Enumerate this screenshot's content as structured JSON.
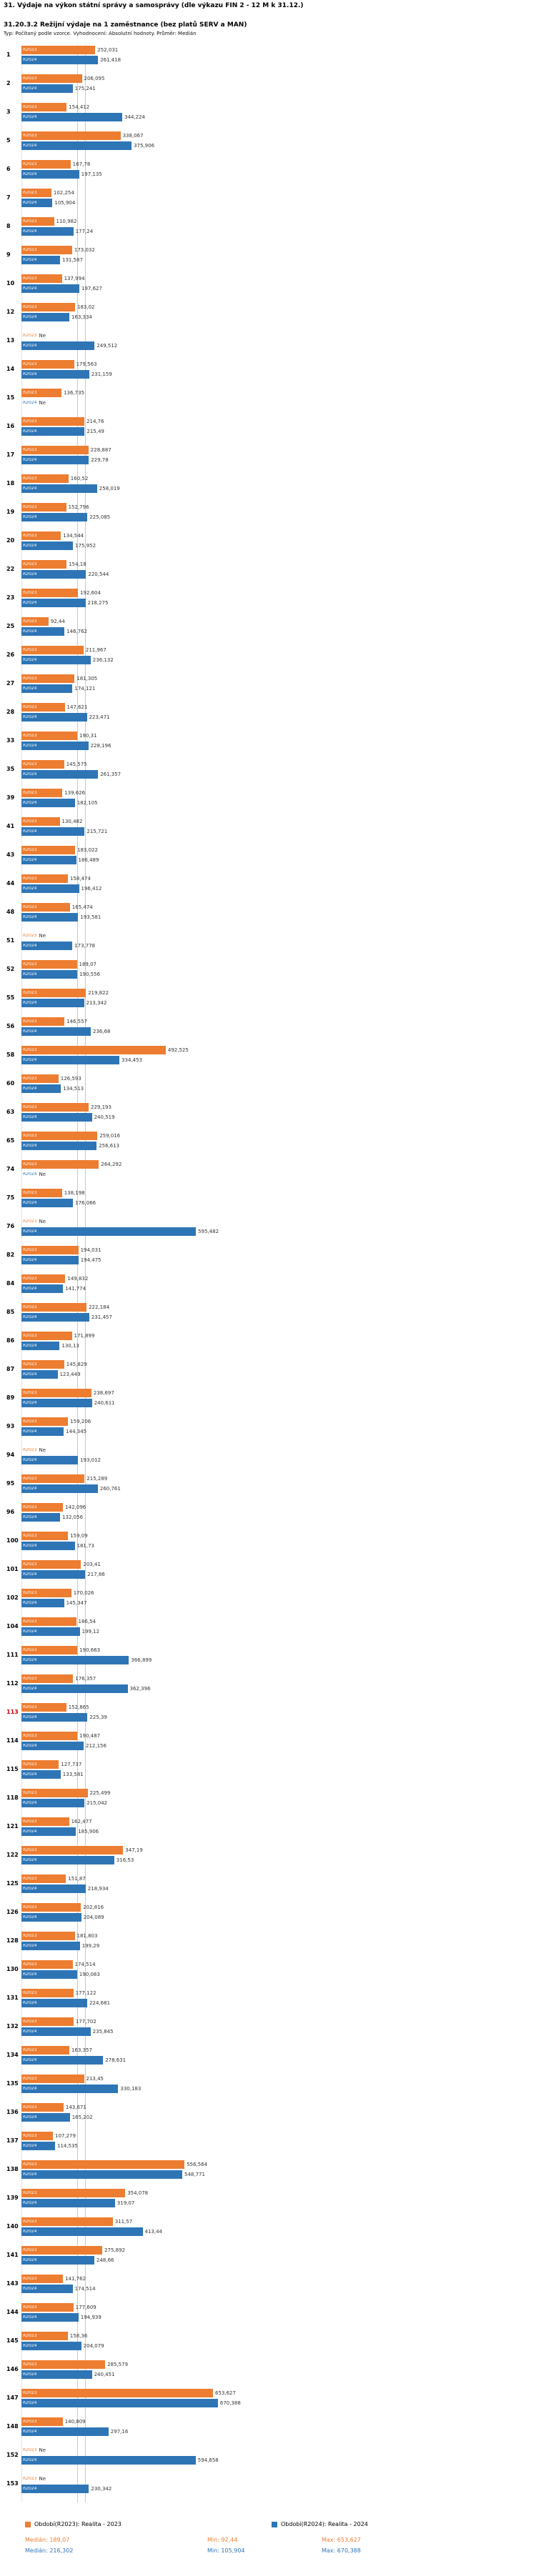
{
  "header": {
    "title": "31. Výdaje na výkon státní správy a samosprávy (dle výkazu FIN 2 - 12 M k 31.12.)",
    "subtitle": "31.20.3.2 Režijní výdaje na 1 zaměstnance (bez platů SERV a MAN)",
    "meta": "Typ: Počítaný podle vzorce. Vyhodnocení: Absolutní hodnoty. Průměr: Medián"
  },
  "colors": {
    "r2023": "#ed7d31",
    "r2024": "#2e75b6",
    "highlight": "#d40000",
    "median_line": "#c8c8c8"
  },
  "legend": {
    "items": [
      {
        "label": "Období(R2023): Realita - 2023",
        "color": "#ed7d31"
      },
      {
        "label": "Období(R2024): Realita - 2024",
        "color": "#2e75b6"
      }
    ]
  },
  "stats": {
    "r2023": {
      "median_text": "Medián: 189,07",
      "min_text": "Min: 92,44",
      "max_text": "Max: 653,627"
    },
    "r2024": {
      "median_text": "Medián: 216,302",
      "min_text": "Min: 105,904",
      "max_text": "Max: 670,388"
    }
  },
  "chart_data": {
    "type": "bar",
    "orientation": "horizontal",
    "series": [
      "R2023",
      "R2024"
    ],
    "no_value_text": "Ne",
    "xlim": [
      0,
      700
    ],
    "grid": false,
    "legend_position": "bottom",
    "median_lines": [
      189.07,
      216.302
    ],
    "highlighted_rows": [
      "113"
    ],
    "rows": [
      {
        "label": "1",
        "r2023": "252,031",
        "r2024": "261,418"
      },
      {
        "label": "2",
        "r2023": "206,095",
        "r2024": "175,241"
      },
      {
        "label": "3",
        "r2023": "154,412",
        "r2024": "344,224"
      },
      {
        "label": "5",
        "r2023": "338,067",
        "r2024": "375,906"
      },
      {
        "label": "6",
        "r2023": "167,78",
        "r2024": "197,135"
      },
      {
        "label": "7",
        "r2023": "102,254",
        "r2024": "105,904"
      },
      {
        "label": "8",
        "r2023": "110,982",
        "r2024": "177,24"
      },
      {
        "label": "9",
        "r2023": "173,032",
        "r2024": "131,587"
      },
      {
        "label": "10",
        "r2023": "137,994",
        "r2024": "197,627"
      },
      {
        "label": "12",
        "r2023": "183,02",
        "r2024": "163,334"
      },
      {
        "label": "13",
        "r2023": "Ne",
        "r2024": "249,512"
      },
      {
        "label": "14",
        "r2023": "179,563",
        "r2024": "231,159"
      },
      {
        "label": "15",
        "r2023": "136,735",
        "r2024": "Ne"
      },
      {
        "label": "16",
        "r2023": "214,76",
        "r2024": "215,49"
      },
      {
        "label": "17",
        "r2023": "228,887",
        "r2024": "229,78"
      },
      {
        "label": "18",
        "r2023": "160,52",
        "r2024": "258,019"
      },
      {
        "label": "19",
        "r2023": "152,796",
        "r2024": "225,085"
      },
      {
        "label": "20",
        "r2023": "134,544",
        "r2024": "175,952"
      },
      {
        "label": "22",
        "r2023": "154,18",
        "r2024": "220,544"
      },
      {
        "label": "23",
        "r2023": "192,604",
        "r2024": "218,275"
      },
      {
        "label": "25",
        "r2023": "92,44",
        "r2024": "146,762"
      },
      {
        "label": "26",
        "r2023": "211,967",
        "r2024": "236,132"
      },
      {
        "label": "27",
        "r2023": "181,305",
        "r2024": "174,121"
      },
      {
        "label": "28",
        "r2023": "147,621",
        "r2024": "223,471"
      },
      {
        "label": "33",
        "r2023": "190,31",
        "r2024": "228,196"
      },
      {
        "label": "35",
        "r2023": "145,575",
        "r2024": "261,357"
      },
      {
        "label": "39",
        "r2023": "139,626",
        "r2024": "182,105"
      },
      {
        "label": "41",
        "r2023": "130,482",
        "r2024": "215,721"
      },
      {
        "label": "43",
        "r2023": "183,022",
        "r2024": "186,489"
      },
      {
        "label": "44",
        "r2023": "158,474",
        "r2024": "196,412"
      },
      {
        "label": "48",
        "r2023": "165,474",
        "r2024": "193,581"
      },
      {
        "label": "51",
        "r2023": "Ne",
        "r2024": "173,778"
      },
      {
        "label": "52",
        "r2023": "189,07",
        "r2024": "190,556"
      },
      {
        "label": "55",
        "r2023": "219,822",
        "r2024": "213,342"
      },
      {
        "label": "56",
        "r2023": "146,557",
        "r2024": "236,68"
      },
      {
        "label": "58",
        "r2023": "492,525",
        "r2024": "334,453"
      },
      {
        "label": "60",
        "r2023": "126,593",
        "r2024": "134,513"
      },
      {
        "label": "63",
        "r2023": "229,193",
        "r2024": "240,519"
      },
      {
        "label": "65",
        "r2023": "259,016",
        "r2024": "256,613"
      },
      {
        "label": "74",
        "r2023": "264,292",
        "r2024": "Ne"
      },
      {
        "label": "75",
        "r2023": "138,198",
        "r2024": "176,066"
      },
      {
        "label": "76",
        "r2023": "Ne",
        "r2024": "595,482"
      },
      {
        "label": "82",
        "r2023": "194,031",
        "r2024": "194,475"
      },
      {
        "label": "84",
        "r2023": "149,832",
        "r2024": "141,774"
      },
      {
        "label": "85",
        "r2023": "222,184",
        "r2024": "231,457"
      },
      {
        "label": "86",
        "r2023": "171,899",
        "r2024": "130,13"
      },
      {
        "label": "87",
        "r2023": "145,829",
        "r2024": "123,449"
      },
      {
        "label": "89",
        "r2023": "238,697",
        "r2024": "240,611"
      },
      {
        "label": "93",
        "r2023": "159,206",
        "r2024": "144,345"
      },
      {
        "label": "94",
        "r2023": "Ne",
        "r2024": "193,012"
      },
      {
        "label": "95",
        "r2023": "215,289",
        "r2024": "260,761"
      },
      {
        "label": "96",
        "r2023": "142,096",
        "r2024": "132,056"
      },
      {
        "label": "100",
        "r2023": "159,09",
        "r2024": "181,73"
      },
      {
        "label": "101",
        "r2023": "203,41",
        "r2024": "217,86"
      },
      {
        "label": "102",
        "r2023": "170,026",
        "r2024": "145,347"
      },
      {
        "label": "104",
        "r2023": "186,54",
        "r2024": "199,12"
      },
      {
        "label": "111",
        "r2023": "190,663",
        "r2024": "366,899"
      },
      {
        "label": "112",
        "r2023": "176,357",
        "r2024": "362,396"
      },
      {
        "label": "113",
        "r2023": "152,865",
        "r2024": "225,39"
      },
      {
        "label": "114",
        "r2023": "190,487",
        "r2024": "212,156"
      },
      {
        "label": "115",
        "r2023": "127,737",
        "r2024": "133,581"
      },
      {
        "label": "118",
        "r2023": "225,499",
        "r2024": "215,042"
      },
      {
        "label": "121",
        "r2023": "162,477",
        "r2024": "185,906"
      },
      {
        "label": "122",
        "r2023": "347,19",
        "r2024": "316,53"
      },
      {
        "label": "125",
        "r2023": "151,87",
        "r2024": "218,934"
      },
      {
        "label": "126",
        "r2023": "202,816",
        "r2024": "204,089"
      },
      {
        "label": "128",
        "r2023": "181,803",
        "r2024": "199,29"
      },
      {
        "label": "130",
        "r2023": "174,514",
        "r2024": "190,083"
      },
      {
        "label": "131",
        "r2023": "177,122",
        "r2024": "224,681"
      },
      {
        "label": "132",
        "r2023": "177,702",
        "r2024": "235,845"
      },
      {
        "label": "134",
        "r2023": "163,357",
        "r2024": "278,631"
      },
      {
        "label": "135",
        "r2023": "213,45",
        "r2024": "330,183"
      },
      {
        "label": "136",
        "r2023": "143,671",
        "r2024": "165,202"
      },
      {
        "label": "137",
        "r2023": "107,279",
        "r2024": "114,535"
      },
      {
        "label": "138",
        "r2023": "556,564",
        "r2024": "548,771"
      },
      {
        "label": "139",
        "r2023": "354,078",
        "r2024": "319,07"
      },
      {
        "label": "140",
        "r2023": "311,57",
        "r2024": "413,44"
      },
      {
        "label": "141",
        "r2023": "275,892",
        "r2024": "248,66"
      },
      {
        "label": "143",
        "r2023": "141,762",
        "r2024": "174,514"
      },
      {
        "label": "144",
        "r2023": "177,609",
        "r2024": "194,939"
      },
      {
        "label": "145",
        "r2023": "158,36",
        "r2024": "204,079"
      },
      {
        "label": "146",
        "r2023": "285,579",
        "r2024": "240,451"
      },
      {
        "label": "147",
        "r2023": "653,627",
        "r2024": "670,388"
      },
      {
        "label": "148",
        "r2023": "140,809",
        "r2024": "297,16"
      },
      {
        "label": "152",
        "r2023": "Ne",
        "r2024": "594,658"
      },
      {
        "label": "153",
        "r2023": "Ne",
        "r2024": "230,342"
      }
    ]
  }
}
